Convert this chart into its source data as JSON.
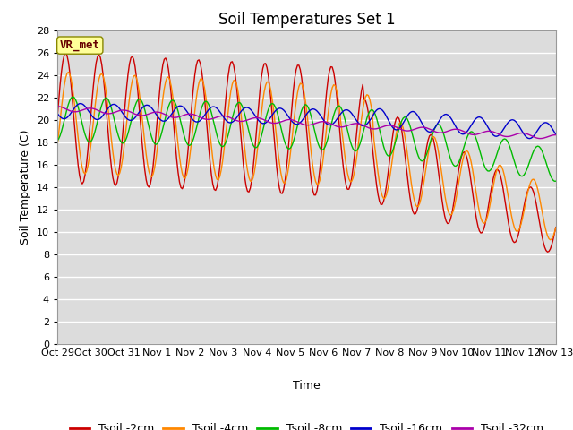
{
  "title": "Soil Temperatures Set 1",
  "xlabel": "Time",
  "ylabel": "Soil Temperature (C)",
  "ylim": [
    0,
    28
  ],
  "yticks": [
    0,
    2,
    4,
    6,
    8,
    10,
    12,
    14,
    16,
    18,
    20,
    22,
    24,
    26,
    28
  ],
  "xtick_labels": [
    "Oct 29",
    "Oct 30",
    "Oct 31",
    "Nov 1",
    "Nov 2",
    "Nov 3",
    "Nov 4",
    "Nov 5",
    "Nov 6",
    "Nov 7",
    "Nov 8",
    "Nov 9",
    "Nov 10",
    "Nov 11",
    "Nov 12",
    "Nov 13"
  ],
  "bg_color": "#dcdcdc",
  "fig_color": "#ffffff",
  "line_colors": [
    "#cc0000",
    "#ff8800",
    "#00bb00",
    "#0000cc",
    "#aa00aa"
  ],
  "line_labels": [
    "Tsoil -2cm",
    "Tsoil -4cm",
    "Tsoil -8cm",
    "Tsoil -16cm",
    "Tsoil -32cm"
  ],
  "vr_met_box_color": "#ffff99",
  "vr_met_text_color": "#660000",
  "grid_color": "#ffffff",
  "title_fontsize": 12,
  "axis_fontsize": 9,
  "tick_fontsize": 8,
  "legend_fontsize": 9
}
